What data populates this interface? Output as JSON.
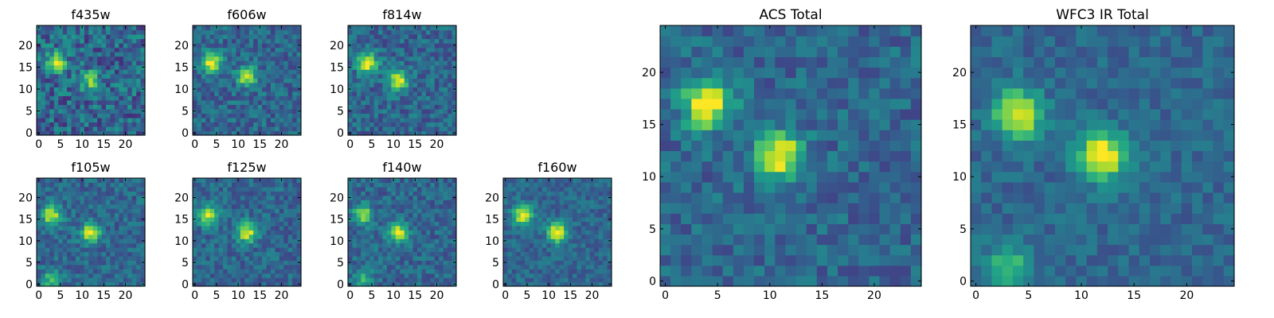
{
  "colors": {
    "colormap": "viridis",
    "axes": "#000000",
    "background": "#ffffff"
  },
  "chart_data": [
    {
      "type": "heatmap",
      "title": "f435w",
      "grid": false,
      "xlim": [
        0,
        24
      ],
      "ylim": [
        0,
        24
      ],
      "xticks": [
        "0",
        "5",
        "10",
        "15",
        "20"
      ],
      "yticks": [
        "0",
        "5",
        "10",
        "15",
        "20"
      ],
      "peaks": [
        {
          "x": 4,
          "y": 16,
          "value": 0.75
        },
        {
          "x": 12,
          "y": 12,
          "value": 0.6
        }
      ],
      "noise": 0.55,
      "seed": 11
    },
    {
      "type": "heatmap",
      "title": "f606w",
      "grid": false,
      "xlim": [
        0,
        24
      ],
      "ylim": [
        0,
        24
      ],
      "xticks": [
        "0",
        "5",
        "10",
        "15",
        "20"
      ],
      "yticks": [
        "0",
        "5",
        "10",
        "15",
        "20"
      ],
      "peaks": [
        {
          "x": 4,
          "y": 16,
          "value": 0.9
        },
        {
          "x": 12,
          "y": 13,
          "value": 0.8
        }
      ],
      "noise": 0.4,
      "seed": 23
    },
    {
      "type": "heatmap",
      "title": "f814w",
      "grid": false,
      "xlim": [
        0,
        24
      ],
      "ylim": [
        0,
        24
      ],
      "xticks": [
        "0",
        "5",
        "10",
        "15",
        "20"
      ],
      "yticks": [
        "0",
        "5",
        "10",
        "15",
        "20"
      ],
      "peaks": [
        {
          "x": 4,
          "y": 16,
          "value": 0.9
        },
        {
          "x": 11,
          "y": 12,
          "value": 0.85
        }
      ],
      "noise": 0.4,
      "seed": 37
    },
    {
      "type": "heatmap",
      "title": "f105w",
      "grid": false,
      "xlim": [
        0,
        24
      ],
      "ylim": [
        0,
        24
      ],
      "xticks": [
        "0",
        "5",
        "10",
        "15",
        "20"
      ],
      "yticks": [
        "0",
        "5",
        "10",
        "15",
        "20"
      ],
      "peaks": [
        {
          "x": 3,
          "y": 16,
          "value": 0.8
        },
        {
          "x": 12,
          "y": 12,
          "value": 0.85
        },
        {
          "x": 3,
          "y": 1,
          "value": 0.5
        }
      ],
      "noise": 0.35,
      "seed": 41
    },
    {
      "type": "heatmap",
      "title": "f125w",
      "grid": false,
      "xlim": [
        0,
        24
      ],
      "ylim": [
        0,
        24
      ],
      "xticks": [
        "0",
        "5",
        "10",
        "15",
        "20"
      ],
      "yticks": [
        "0",
        "5",
        "10",
        "15",
        "20"
      ],
      "peaks": [
        {
          "x": 3,
          "y": 16,
          "value": 0.8
        },
        {
          "x": 12,
          "y": 12,
          "value": 0.85
        }
      ],
      "noise": 0.35,
      "seed": 53
    },
    {
      "type": "heatmap",
      "title": "f140w",
      "grid": false,
      "xlim": [
        0,
        24
      ],
      "ylim": [
        0,
        24
      ],
      "xticks": [
        "0",
        "5",
        "10",
        "15",
        "20"
      ],
      "yticks": [
        "0",
        "5",
        "10",
        "15",
        "20"
      ],
      "peaks": [
        {
          "x": 3,
          "y": 16,
          "value": 0.75
        },
        {
          "x": 11,
          "y": 12,
          "value": 0.85
        },
        {
          "x": 3,
          "y": 1,
          "value": 0.45
        }
      ],
      "noise": 0.35,
      "seed": 67
    },
    {
      "type": "heatmap",
      "title": "f160w",
      "grid": false,
      "xlim": [
        0,
        24
      ],
      "ylim": [
        0,
        24
      ],
      "xticks": [
        "0",
        "5",
        "10",
        "15",
        "20"
      ],
      "yticks": [
        "0",
        "5",
        "10",
        "15",
        "20"
      ],
      "peaks": [
        {
          "x": 4,
          "y": 16,
          "value": 0.85
        },
        {
          "x": 12,
          "y": 12,
          "value": 0.95
        }
      ],
      "noise": 0.3,
      "seed": 71
    },
    {
      "type": "heatmap",
      "title": "ACS Total",
      "grid": false,
      "xlim": [
        0,
        24
      ],
      "ylim": [
        0,
        24
      ],
      "xticks": [
        "0",
        "5",
        "10",
        "15",
        "20"
      ],
      "yticks": [
        "0",
        "5",
        "10",
        "15",
        "20"
      ],
      "peaks": [
        {
          "x": 4,
          "y": 17,
          "value": 1.0
        },
        {
          "x": 11,
          "y": 12,
          "value": 0.95
        }
      ],
      "noise": 0.35,
      "seed": 83
    },
    {
      "type": "heatmap",
      "title": "WFC3 IR Total",
      "grid": false,
      "xlim": [
        0,
        24
      ],
      "ylim": [
        0,
        24
      ],
      "xticks": [
        "0",
        "5",
        "10",
        "15",
        "20"
      ],
      "yticks": [
        "0",
        "5",
        "10",
        "15",
        "20"
      ],
      "peaks": [
        {
          "x": 4,
          "y": 16,
          "value": 0.9
        },
        {
          "x": 12,
          "y": 12,
          "value": 1.0
        },
        {
          "x": 3,
          "y": 1,
          "value": 0.55
        }
      ],
      "noise": 0.25,
      "seed": 97
    }
  ]
}
